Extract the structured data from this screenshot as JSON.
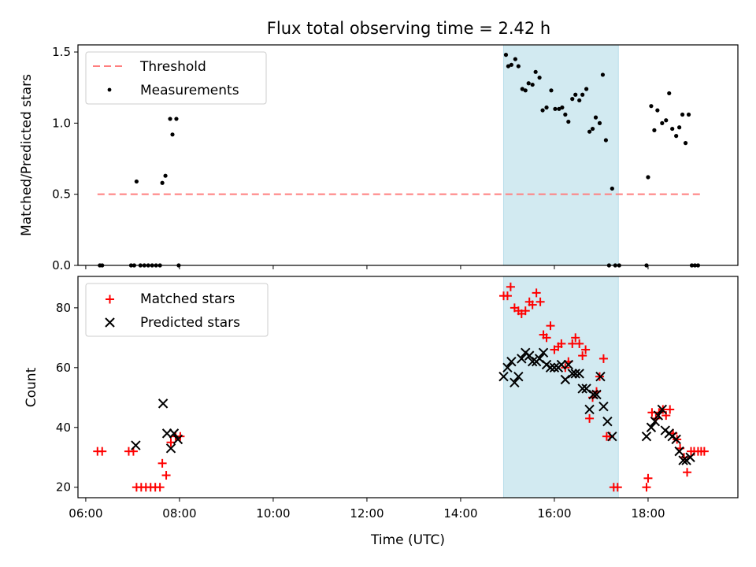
{
  "chart_data": [
    {
      "type": "scatter",
      "title": "Flux total observing time = 2.42 h",
      "ylabel": "Matched/Predicted stars",
      "xlabel": "",
      "ylim": [
        0,
        1.55
      ],
      "yticks": [
        0.0,
        0.5,
        1.0,
        1.5
      ],
      "ytick_labels": [
        "0.0",
        "0.5",
        "1.0",
        "1.5"
      ],
      "shaded_region": {
        "x_start": "14:55",
        "x_end": "17:22",
        "color": "#add8e6"
      },
      "threshold": {
        "name": "Threshold",
        "value": 0.5,
        "x_start": "06:15",
        "x_end": "19:10",
        "color": "#ff7f7f"
      },
      "legend": {
        "position": "top-left",
        "entries": [
          "Threshold",
          "Measurements"
        ]
      },
      "series": [
        {
          "name": "Measurements",
          "color": "#000000",
          "points": [
            [
              "06:18",
              0
            ],
            [
              "06:21",
              0
            ],
            [
              "06:58",
              0
            ],
            [
              "07:02",
              0
            ],
            [
              "07:05",
              0.59
            ],
            [
              "07:10",
              0
            ],
            [
              "07:15",
              0
            ],
            [
              "07:20",
              0
            ],
            [
              "07:25",
              0
            ],
            [
              "07:30",
              0
            ],
            [
              "07:35",
              0
            ],
            [
              "07:38",
              0.58
            ],
            [
              "07:42",
              0.63
            ],
            [
              "07:48",
              1.03
            ],
            [
              "07:51",
              0.92
            ],
            [
              "07:56",
              1.03
            ],
            [
              "07:59",
              0
            ],
            [
              "14:58",
              1.48
            ],
            [
              "15:01",
              1.4
            ],
            [
              "15:05",
              1.41
            ],
            [
              "15:10",
              1.45
            ],
            [
              "15:14",
              1.4
            ],
            [
              "15:19",
              1.24
            ],
            [
              "15:23",
              1.23
            ],
            [
              "15:27",
              1.28
            ],
            [
              "15:32",
              1.27
            ],
            [
              "15:36",
              1.36
            ],
            [
              "15:41",
              1.32
            ],
            [
              "15:45",
              1.09
            ],
            [
              "15:50",
              1.11
            ],
            [
              "15:56",
              1.23
            ],
            [
              "16:01",
              1.1
            ],
            [
              "16:06",
              1.1
            ],
            [
              "16:10",
              1.11
            ],
            [
              "16:14",
              1.06
            ],
            [
              "16:18",
              1.01
            ],
            [
              "16:23",
              1.17
            ],
            [
              "16:27",
              1.2
            ],
            [
              "16:32",
              1.16
            ],
            [
              "16:36",
              1.2
            ],
            [
              "16:41",
              1.24
            ],
            [
              "16:45",
              0.94
            ],
            [
              "16:49",
              0.96
            ],
            [
              "16:53",
              1.04
            ],
            [
              "16:58",
              1.0
            ],
            [
              "17:02",
              1.34
            ],
            [
              "17:06",
              0.88
            ],
            [
              "17:10",
              0
            ],
            [
              "17:14",
              0.54
            ],
            [
              "17:18",
              0
            ],
            [
              "17:23",
              0
            ],
            [
              "17:58",
              0
            ],
            [
              "18:00",
              0.62
            ],
            [
              "18:04",
              1.12
            ],
            [
              "18:08",
              0.95
            ],
            [
              "18:12",
              1.09
            ],
            [
              "18:18",
              1.0
            ],
            [
              "18:23",
              1.02
            ],
            [
              "18:27",
              1.21
            ],
            [
              "18:31",
              0.96
            ],
            [
              "18:36",
              0.91
            ],
            [
              "18:40",
              0.97
            ],
            [
              "18:44",
              1.06
            ],
            [
              "18:48",
              0.86
            ],
            [
              "18:52",
              1.06
            ],
            [
              "18:56",
              0
            ],
            [
              "19:00",
              0
            ],
            [
              "19:04",
              0
            ]
          ]
        }
      ]
    },
    {
      "type": "scatter",
      "title": "",
      "ylabel": "Count",
      "xlabel": "Time (UTC)",
      "ylim": [
        16.5,
        90.5
      ],
      "yticks": [
        20,
        40,
        60,
        80
      ],
      "ytick_labels": [
        "20",
        "40",
        "60",
        "80"
      ],
      "xlim": [
        "05:50",
        "19:55"
      ],
      "xticks": [
        "06:00",
        "08:00",
        "10:00",
        "12:00",
        "14:00",
        "16:00",
        "18:00"
      ],
      "xtick_labels": [
        "06:00",
        "08:00",
        "10:00",
        "12:00",
        "14:00",
        "16:00",
        "18:00"
      ],
      "shaded_region": {
        "x_start": "14:55",
        "x_end": "17:22",
        "color": "#add8e6"
      },
      "legend": {
        "position": "top-left",
        "entries": [
          "Matched stars",
          "Predicted stars"
        ]
      },
      "series": [
        {
          "name": "Matched stars",
          "marker": "plus",
          "color": "#ff0000",
          "points": [
            [
              "06:15",
              32
            ],
            [
              "06:21",
              32
            ],
            [
              "06:55",
              32
            ],
            [
              "07:01",
              32
            ],
            [
              "07:05",
              20
            ],
            [
              "07:11",
              20
            ],
            [
              "07:17",
              20
            ],
            [
              "07:23",
              20
            ],
            [
              "07:29",
              20
            ],
            [
              "07:35",
              20
            ],
            [
              "07:38",
              28
            ],
            [
              "07:43",
              24
            ],
            [
              "07:49",
              35
            ],
            [
              "07:55",
              37
            ],
            [
              "08:01",
              37
            ],
            [
              "14:55",
              84
            ],
            [
              "15:00",
              84
            ],
            [
              "15:04",
              87
            ],
            [
              "15:09",
              80
            ],
            [
              "15:14",
              79
            ],
            [
              "15:18",
              78
            ],
            [
              "15:23",
              79
            ],
            [
              "15:28",
              82
            ],
            [
              "15:32",
              81
            ],
            [
              "15:37",
              85
            ],
            [
              "15:42",
              82
            ],
            [
              "15:46",
              71
            ],
            [
              "15:50",
              70
            ],
            [
              "15:55",
              74
            ],
            [
              "16:00",
              66
            ],
            [
              "16:05",
              67
            ],
            [
              "16:09",
              68
            ],
            [
              "16:14",
              60
            ],
            [
              "16:18",
              62
            ],
            [
              "16:23",
              68
            ],
            [
              "16:27",
              70
            ],
            [
              "16:32",
              68
            ],
            [
              "16:36",
              64
            ],
            [
              "16:40",
              66
            ],
            [
              "16:45",
              43
            ],
            [
              "16:49",
              50
            ],
            [
              "16:54",
              52
            ],
            [
              "16:58",
              57
            ],
            [
              "17:03",
              63
            ],
            [
              "17:07",
              37
            ],
            [
              "17:11",
              37
            ],
            [
              "17:16",
              20
            ],
            [
              "17:21",
              20
            ],
            [
              "17:58",
              20
            ],
            [
              "18:00",
              23
            ],
            [
              "18:05",
              45
            ],
            [
              "18:10",
              43
            ],
            [
              "18:14",
              45
            ],
            [
              "18:19",
              46
            ],
            [
              "18:23",
              44
            ],
            [
              "18:28",
              46
            ],
            [
              "18:32",
              38
            ],
            [
              "18:37",
              36
            ],
            [
              "18:41",
              33
            ],
            [
              "18:46",
              30
            ],
            [
              "18:50",
              25
            ],
            [
              "18:55",
              32
            ],
            [
              "18:59",
              32
            ],
            [
              "19:04",
              32
            ],
            [
              "19:08",
              32
            ],
            [
              "19:12",
              32
            ]
          ]
        },
        {
          "name": "Predicted stars",
          "marker": "x",
          "color": "#000000",
          "points": [
            [
              "07:04",
              34
            ],
            [
              "07:39",
              48
            ],
            [
              "07:44",
              38
            ],
            [
              "07:49",
              33
            ],
            [
              "07:53",
              38
            ],
            [
              "07:58",
              36
            ],
            [
              "14:55",
              57
            ],
            [
              "15:00",
              60
            ],
            [
              "15:05",
              62
            ],
            [
              "15:09",
              55
            ],
            [
              "15:14",
              57
            ],
            [
              "15:18",
              63
            ],
            [
              "15:23",
              65
            ],
            [
              "15:28",
              64
            ],
            [
              "15:32",
              62
            ],
            [
              "15:37",
              62
            ],
            [
              "15:41",
              63
            ],
            [
              "15:46",
              65
            ],
            [
              "15:50",
              61
            ],
            [
              "15:55",
              60
            ],
            [
              "16:00",
              60
            ],
            [
              "16:05",
              60
            ],
            [
              "16:09",
              61
            ],
            [
              "16:14",
              56
            ],
            [
              "16:18",
              61
            ],
            [
              "16:23",
              58
            ],
            [
              "16:27",
              58
            ],
            [
              "16:32",
              58
            ],
            [
              "16:36",
              53
            ],
            [
              "16:41",
              53
            ],
            [
              "16:45",
              46
            ],
            [
              "16:50",
              51
            ],
            [
              "16:54",
              51
            ],
            [
              "16:59",
              57
            ],
            [
              "17:03",
              47
            ],
            [
              "17:08",
              42
            ],
            [
              "17:14",
              37
            ],
            [
              "17:58",
              37
            ],
            [
              "18:04",
              40
            ],
            [
              "18:09",
              42
            ],
            [
              "18:13",
              44
            ],
            [
              "18:18",
              46
            ],
            [
              "18:22",
              39
            ],
            [
              "18:27",
              38
            ],
            [
              "18:31",
              37
            ],
            [
              "18:36",
              36
            ],
            [
              "18:40",
              32
            ],
            [
              "18:45",
              29
            ],
            [
              "18:49",
              29
            ],
            [
              "18:54",
              30
            ]
          ]
        }
      ]
    }
  ]
}
